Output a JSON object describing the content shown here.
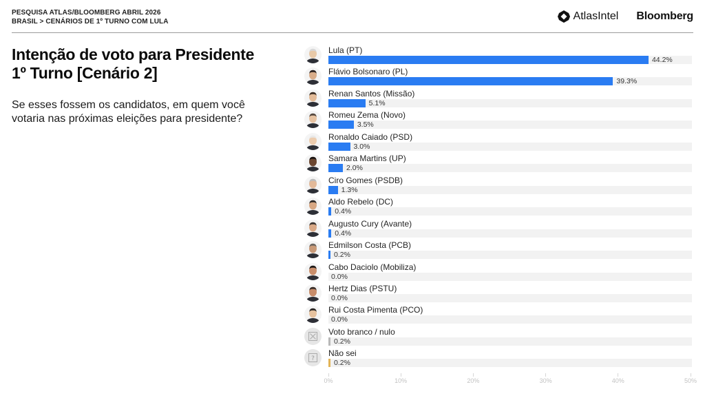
{
  "header": {
    "line1": "PESQUISA ATLAS/BLOOMBERG ABRIL 2026",
    "line2": "BRASIL > CENÁRIOS DE 1º TURNO COM LULA",
    "brand_atlas": "AtlasIntel",
    "brand_bloomberg": "Bloomberg"
  },
  "title": {
    "line1": "Intenção de voto para Presidente",
    "line2": "1º Turno [Cenário 2]"
  },
  "question": "Se esses fossem os candidatos, em quem você votaria nas próximas eleições para presidente?",
  "colors": {
    "bar": "#2a7cf2",
    "blank": "#b8b8b8",
    "dont_know": "#e2b456",
    "track": "#f2f2f2"
  },
  "chart_data": {
    "type": "bar",
    "orientation": "horizontal",
    "title": "Intenção de voto para Presidente 1º Turno [Cenário 2]",
    "xlabel": "",
    "ylabel": "",
    "xlim": [
      0,
      50
    ],
    "xticks": [
      "0%",
      "10%",
      "20%",
      "30%",
      "40%",
      "50%"
    ],
    "grid": false,
    "legend": null,
    "categories": [
      "Lula (PT)",
      "Flávio Bolsonaro (PL)",
      "Renan Santos (Missão)",
      "Romeu Zema (Novo)",
      "Ronaldo Caiado (PSD)",
      "Samara Martins (UP)",
      "Ciro Gomes (PSDB)",
      "Aldo Rebelo (DC)",
      "Augusto Cury (Avante)",
      "Edmilson Costa (PCB)",
      "Cabo Daciolo (Mobiliza)",
      "Hertz Dias (PSTU)",
      "Rui Costa Pimenta (PCO)",
      "Voto branco / nulo",
      "Não sei"
    ],
    "values": [
      44.2,
      39.3,
      5.1,
      3.5,
      3.0,
      2.0,
      1.3,
      0.4,
      0.4,
      0.2,
      0.0,
      0.0,
      0.0,
      0.2,
      0.2
    ],
    "value_labels": [
      "44.2%",
      "39.3%",
      "5.1%",
      "3.5%",
      "3.0%",
      "2.0%",
      "1.3%",
      "0.4%",
      "0.4%",
      "0.2%",
      "0.0%",
      "0.0%",
      "0.0%",
      "0.2%",
      "0.2%"
    ],
    "bar_colors": [
      "#2a7cf2",
      "#2a7cf2",
      "#2a7cf2",
      "#2a7cf2",
      "#2a7cf2",
      "#2a7cf2",
      "#2a7cf2",
      "#2a7cf2",
      "#2a7cf2",
      "#2a7cf2",
      "#2a7cf2",
      "#2a7cf2",
      "#2a7cf2",
      "#b8b8b8",
      "#e2b456"
    ],
    "avatar_types": [
      "photo",
      "photo",
      "photo",
      "photo",
      "photo",
      "photo",
      "photo",
      "photo",
      "photo",
      "photo",
      "photo",
      "photo",
      "photo",
      "x-box-icon",
      "question-box-icon"
    ]
  }
}
